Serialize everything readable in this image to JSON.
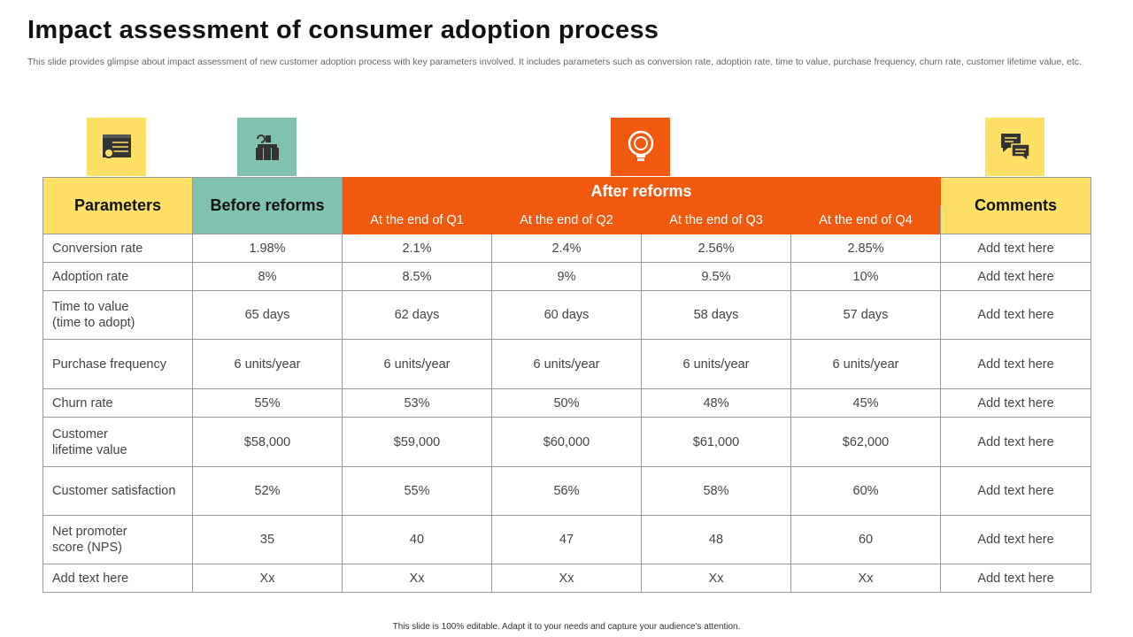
{
  "title": "Impact assessment of consumer adoption process",
  "subtitle": "This slide provides glimpse about impact assessment of new customer adoption process with key parameters involved. It includes parameters such as conversion rate, adoption rate, time to value, purchase frequency, churn rate, customer lifetime value, etc.",
  "colors": {
    "yellow": "#FFE066",
    "teal": "#80C2AF",
    "orange": "#F15A0E"
  },
  "icons": [
    "settings-dashboard-icon",
    "factory-reform-icon",
    "lightbulb-icon",
    "chat-bubbles-icon"
  ],
  "table": {
    "headers": {
      "parameters": "Parameters",
      "before": "Before reforms",
      "after": "After reforms",
      "comments": "Comments",
      "quarters": [
        "At the end of Q1",
        "At the end of Q2",
        "At the end of Q3",
        "At the end of Q4"
      ]
    },
    "rows": [
      {
        "param": "Conversion rate",
        "values": [
          "1.98%",
          "2.1%",
          "2.4%",
          "2.56%",
          "2.85%"
        ],
        "comment": "Add text here"
      },
      {
        "param": "Adoption rate",
        "values": [
          "8%",
          "8.5%",
          "9%",
          "9.5%",
          "10%"
        ],
        "comment": "Add text here"
      },
      {
        "param": "Time to value\n(time to adopt)",
        "values": [
          "65 days",
          "62 days",
          "60 days",
          "58 days",
          "57 days"
        ],
        "comment": "Add text here"
      },
      {
        "param": "Purchase frequency",
        "values": [
          "6 units/year",
          "6 units/year",
          "6 units/year",
          "6 units/year",
          "6 units/year"
        ],
        "comment": "Add text here"
      },
      {
        "param": "Churn rate",
        "values": [
          "55%",
          "53%",
          "50%",
          "48%",
          "45%"
        ],
        "comment": "Add text here"
      },
      {
        "param": "Customer\n lifetime value",
        "values": [
          "$58,000",
          "$59,000",
          "$60,000",
          "$61,000",
          "$62,000"
        ],
        "comment": "Add text here"
      },
      {
        "param": "Customer satisfaction",
        "values": [
          "52%",
          "55%",
          "56%",
          "58%",
          "60%"
        ],
        "comment": "Add text here"
      },
      {
        "param": "Net promoter\nscore (NPS)",
        "values": [
          "35",
          "40",
          "47",
          "48",
          "60"
        ],
        "comment": "Add text here"
      },
      {
        "param": "Add text here",
        "values": [
          "Xx",
          "Xx",
          "Xx",
          "Xx",
          "Xx"
        ],
        "comment": "Add text here"
      }
    ]
  },
  "footer": "This slide is 100% editable. Adapt it to your needs and capture your audience's attention."
}
